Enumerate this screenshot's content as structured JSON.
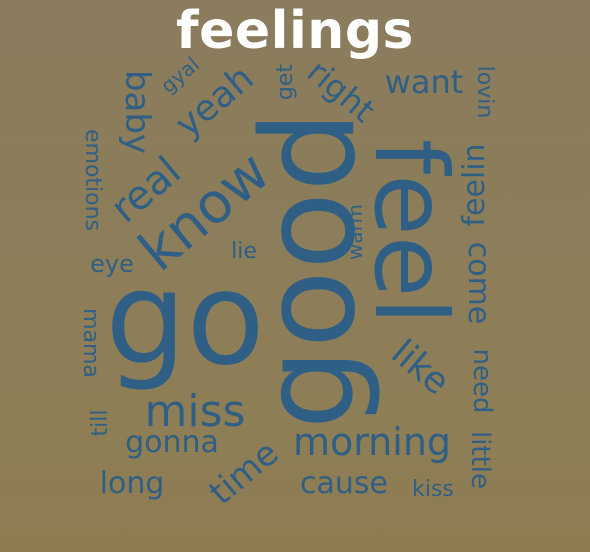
{
  "title": "feelings",
  "colors": {
    "background_top": "#8a7c5c",
    "background_bottom": "#8f7d52",
    "title": "#ffffff",
    "word": "#2f5f85"
  },
  "words": {
    "good": "good",
    "feel": "feel",
    "go": "go",
    "know": "know",
    "miss": "miss",
    "morning": "morning",
    "real": "real",
    "yeah": "yeah",
    "baby": "baby",
    "right": "right",
    "like": "like",
    "want": "want",
    "time": "time",
    "cause": "cause",
    "gonna": "gonna",
    "long": "long",
    "feelin": "feelin",
    "come": "come",
    "need": "need",
    "little": "little",
    "emotions": "emotions",
    "mama": "mama",
    "lovin": "lovin",
    "get": "get",
    "gyal": "gyal",
    "warm": "warm",
    "lie": "lie",
    "eye": "eye",
    "till": "till",
    "kiss": "kiss"
  }
}
